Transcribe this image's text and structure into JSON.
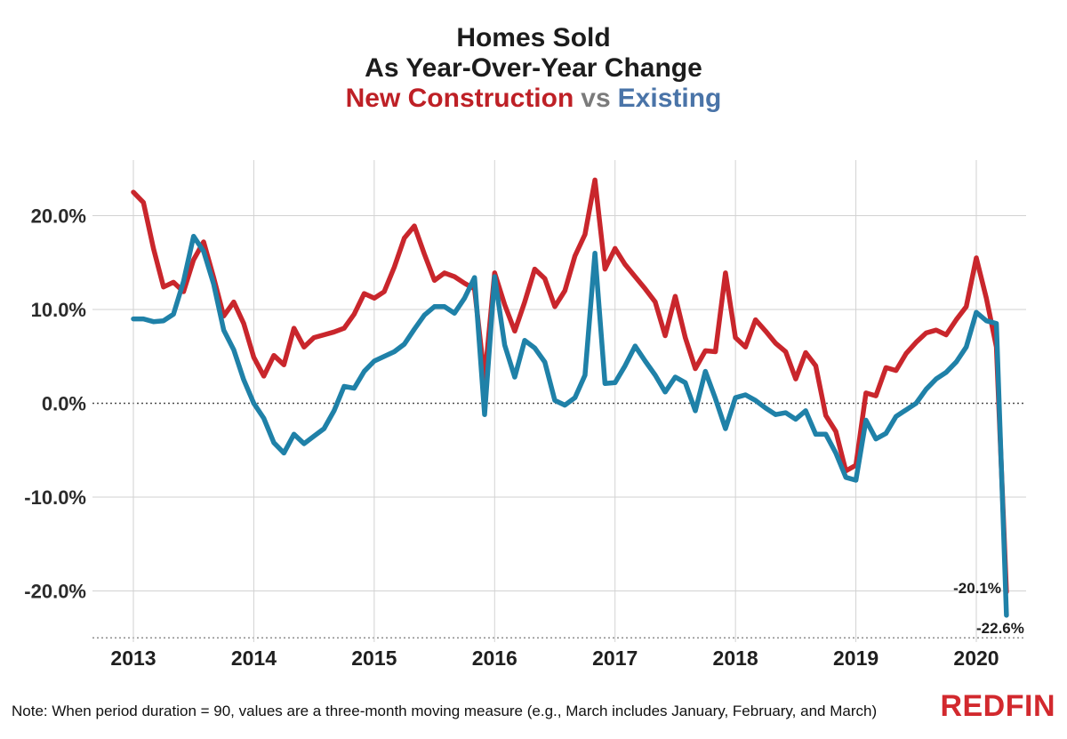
{
  "title": {
    "line1": "Homes Sold",
    "line2": "As Year-Over-Year Change",
    "series1": "New Construction",
    "vs": "vs",
    "series2": "Existing"
  },
  "colors": {
    "new_construction_line": "#c9262c",
    "existing_line": "#1f81a8",
    "title_new_construction": "#be2026",
    "title_existing": "#4a74a8",
    "title_vs": "#7b7b7b",
    "logo_red": "#d2292e",
    "axis_text": "#2b2b2b",
    "gridline": "#d2d2d2",
    "zero_line": "#4a4a4a"
  },
  "chart_data": {
    "type": "line",
    "title": "Homes Sold As Year-Over-Year Change - New Construction vs Existing",
    "x_start": "2013-01",
    "x_end": "2020-04",
    "x_interval": "monthly",
    "x_tick_labels": [
      "2013",
      "2014",
      "2015",
      "2016",
      "2017",
      "2018",
      "2019",
      "2020"
    ],
    "y_tick_labels": [
      "20.0%",
      "10.0%",
      "0.0%",
      "-10.0%",
      "-20.0%"
    ],
    "y_ticks": [
      20,
      10,
      0,
      -10,
      -20
    ],
    "y_bottom_dotted": -25,
    "ylim": [
      -25.5,
      26
    ],
    "grid": true,
    "legend_position": "in-title",
    "series": [
      {
        "name": "New Construction",
        "color": "#c9262c",
        "values": [
          22.5,
          21.4,
          16.5,
          12.4,
          12.9,
          11.9,
          15.3,
          17.2,
          13.4,
          9.3,
          10.8,
          8.5,
          4.9,
          2.9,
          5.1,
          4.1,
          8.0,
          6.0,
          7.0,
          7.3,
          7.6,
          8.0,
          9.5,
          11.7,
          11.2,
          11.9,
          14.5,
          17.6,
          18.9,
          15.9,
          13.1,
          13.9,
          13.5,
          12.8,
          12.2,
          2.6,
          13.9,
          10.5,
          7.7,
          10.8,
          14.3,
          13.3,
          10.3,
          12.0,
          15.7,
          18.0,
          23.8,
          14.3,
          16.5,
          14.8,
          13.5,
          12.2,
          10.8,
          7.2,
          11.4,
          7.0,
          3.7,
          5.6,
          5.5,
          13.9,
          7.0,
          6.0,
          8.9,
          7.7,
          6.4,
          5.5,
          2.6,
          5.4,
          4.0,
          -1.3,
          -3.0,
          -7.2,
          -6.6,
          1.1,
          0.8,
          3.8,
          3.5,
          5.3,
          6.5,
          7.5,
          7.8,
          7.3,
          8.9,
          10.3,
          15.5,
          11.2,
          6.0,
          -20.1
        ]
      },
      {
        "name": "Existing",
        "color": "#1f81a8",
        "values": [
          9.0,
          9.0,
          8.7,
          8.8,
          9.5,
          13.0,
          17.8,
          16.2,
          12.7,
          7.8,
          5.7,
          2.5,
          0.0,
          -1.6,
          -4.2,
          -5.3,
          -3.3,
          -4.3,
          -3.5,
          -2.7,
          -0.8,
          1.8,
          1.6,
          3.4,
          4.5,
          5.0,
          5.5,
          6.3,
          7.9,
          9.4,
          10.3,
          10.3,
          9.6,
          11.2,
          13.4,
          -1.2,
          13.5,
          6.2,
          2.8,
          6.7,
          5.9,
          4.4,
          0.3,
          -0.2,
          0.6,
          3.0,
          16.0,
          2.1,
          2.2,
          4.0,
          6.1,
          4.5,
          3.0,
          1.2,
          2.8,
          2.2,
          -0.8,
          3.4,
          0.5,
          -2.7,
          0.6,
          0.9,
          0.3,
          -0.5,
          -1.2,
          -1.0,
          -1.7,
          -0.8,
          -3.3,
          -3.3,
          -5.3,
          -7.9,
          -8.2,
          -1.8,
          -3.8,
          -3.2,
          -1.4,
          -0.7,
          0.0,
          1.5,
          2.6,
          3.3,
          4.4,
          6.0,
          9.7,
          8.8,
          8.5,
          -22.6
        ]
      }
    ],
    "annotations": [
      {
        "text": "-20.1%",
        "series": "New Construction",
        "x": "2020-04",
        "value": -20.1
      },
      {
        "text": "-22.6%",
        "series": "Existing",
        "x": "2020-04",
        "value": -22.6
      }
    ]
  },
  "note": "Note: When period duration = 90, values are a three-month moving measure (e.g., March includes January, February, and March)",
  "logo": {
    "text": "REDFIN"
  }
}
